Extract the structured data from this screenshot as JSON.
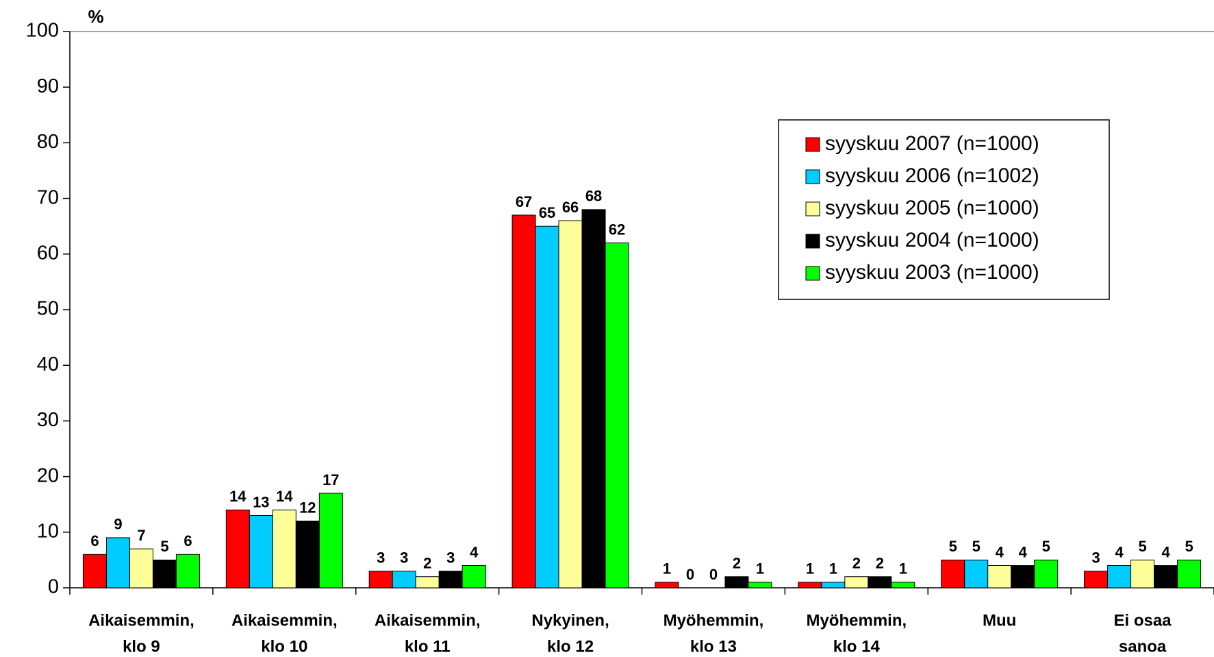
{
  "chart_data": {
    "type": "bar",
    "ylabel": "%",
    "categories": [
      [
        "Aikaisemmin,",
        "klo 9"
      ],
      [
        "Aikaisemmin,",
        "klo 10"
      ],
      [
        "Aikaisemmin,",
        "klo 11"
      ],
      [
        "Nykyinen,",
        "klo 12"
      ],
      [
        "Myöhemmin,",
        "klo 13"
      ],
      [
        "Myöhemmin,",
        "klo 14"
      ],
      [
        "Muu"
      ],
      [
        "Ei osaa",
        "sanoa"
      ]
    ],
    "series": [
      {
        "name": "syyskuu 2007 (n=1000)",
        "color": "#ff0000",
        "values": [
          6,
          14,
          3,
          67,
          1,
          1,
          5,
          3
        ]
      },
      {
        "name": "syyskuu 2006 (n=1002)",
        "color": "#00ccff",
        "values": [
          9,
          13,
          3,
          65,
          0,
          1,
          5,
          4
        ]
      },
      {
        "name": "syyskuu 2005 (n=1000)",
        "color": "#ffff99",
        "values": [
          7,
          14,
          2,
          66,
          0,
          2,
          4,
          5
        ]
      },
      {
        "name": "syyskuu 2004 (n=1000)",
        "color": "#000000",
        "values": [
          5,
          12,
          3,
          68,
          2,
          2,
          4,
          4
        ]
      },
      {
        "name": "syyskuu 2003 (n=1000)",
        "color": "#00ff00",
        "values": [
          6,
          17,
          4,
          62,
          1,
          1,
          5,
          5
        ]
      }
    ],
    "ylim": [
      0,
      100
    ],
    "yticks": [
      0,
      10,
      20,
      30,
      40,
      50,
      60,
      70,
      80,
      90,
      100
    ],
    "legend": "upper right"
  }
}
